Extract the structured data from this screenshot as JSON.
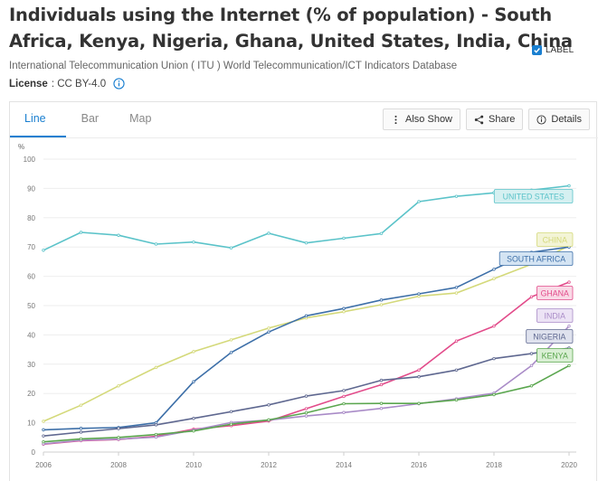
{
  "header": {
    "title": "Individuals using the Internet (% of population) - South Africa, Kenya, Nigeria, Ghana, United States, India, China",
    "source": "International Telecommunication Union ( ITU ) World Telecommunication/ICT Indicators Database",
    "license_label": "License",
    "license_value": ": CC BY-4.0"
  },
  "tabs": [
    {
      "label": "Line",
      "active": true
    },
    {
      "label": "Bar",
      "active": false
    },
    {
      "label": "Map",
      "active": false
    }
  ],
  "toolbar": {
    "also_show": "Also Show",
    "share": "Share",
    "details": "Details"
  },
  "label_toggle": {
    "text": "LABEL",
    "checked": true
  },
  "colors": {
    "accent": "#1a7fd0",
    "united_states": "#5bc3c9",
    "china": "#d4d97a",
    "south_africa": "#3d6fa8",
    "ghana": "#e24b8a",
    "india": "#a98bc7",
    "nigeria": "#5f6890",
    "kenya": "#5aa64e"
  },
  "chart_data": {
    "type": "line",
    "ylabel": "%",
    "ylim": [
      0,
      100
    ],
    "yticks": [
      0,
      10,
      20,
      30,
      40,
      50,
      60,
      70,
      80,
      90,
      100
    ],
    "xlim": [
      2006,
      2020
    ],
    "xticks": [
      2006,
      2008,
      2010,
      2012,
      2014,
      2016,
      2018,
      2020
    ],
    "x": [
      2006,
      2007,
      2008,
      2009,
      2010,
      2011,
      2012,
      2013,
      2014,
      2015,
      2016,
      2017,
      2018,
      2019,
      2020
    ],
    "grid": true,
    "labels_shown": true,
    "series": [
      {
        "name": "UNITED STATES",
        "color": "#5bc3c9",
        "label_fill": "#d5f0f1",
        "values": [
          68.9,
          75.0,
          74.0,
          71.0,
          71.7,
          69.7,
          74.7,
          71.4,
          73.0,
          74.6,
          85.5,
          87.3,
          88.5,
          89.4,
          90.9
        ]
      },
      {
        "name": "CHINA",
        "color": "#d4d97a",
        "label_fill": "#f3f4d6",
        "values": [
          10.5,
          16.0,
          22.6,
          28.9,
          34.3,
          38.3,
          42.3,
          45.8,
          47.9,
          50.3,
          53.2,
          54.3,
          59.2,
          64.1,
          70.4
        ]
      },
      {
        "name": "SOUTH AFRICA",
        "color": "#3d6fa8",
        "label_fill": "#d4e4f3",
        "values": [
          7.6,
          8.1,
          8.4,
          10.0,
          24.0,
          33.97,
          41.0,
          46.5,
          49.0,
          51.9,
          54.0,
          56.2,
          62.4,
          68.2,
          70.0
        ]
      },
      {
        "name": "GHANA",
        "color": "#e24b8a",
        "label_fill": "#f9d9e6",
        "values": [
          2.7,
          3.9,
          4.3,
          5.4,
          7.8,
          9.0,
          10.6,
          14.8,
          19.0,
          23.0,
          28.0,
          37.9,
          43.0,
          53.0,
          58.0
        ]
      },
      {
        "name": "INDIA",
        "color": "#a98bc7",
        "label_fill": "#ece3f5",
        "values": [
          2.8,
          4.0,
          4.4,
          5.1,
          7.5,
          10.1,
          10.9,
          12.3,
          13.5,
          14.9,
          16.5,
          18.2,
          20.1,
          29.5,
          43.0
        ]
      },
      {
        "name": "NIGERIA",
        "color": "#5f6890",
        "label_fill": "#dfe2ee",
        "values": [
          5.5,
          6.8,
          8.0,
          9.3,
          11.5,
          13.8,
          16.1,
          19.1,
          21.0,
          24.5,
          25.7,
          28.0,
          31.9,
          33.6,
          35.5
        ]
      },
      {
        "name": "KENYA",
        "color": "#5aa64e",
        "label_fill": "#d9efd4",
        "values": [
          3.5,
          4.5,
          5.0,
          6.0,
          7.2,
          9.5,
          11.0,
          13.4,
          16.5,
          16.6,
          16.6,
          17.8,
          19.6,
          22.6,
          29.5
        ]
      }
    ]
  }
}
